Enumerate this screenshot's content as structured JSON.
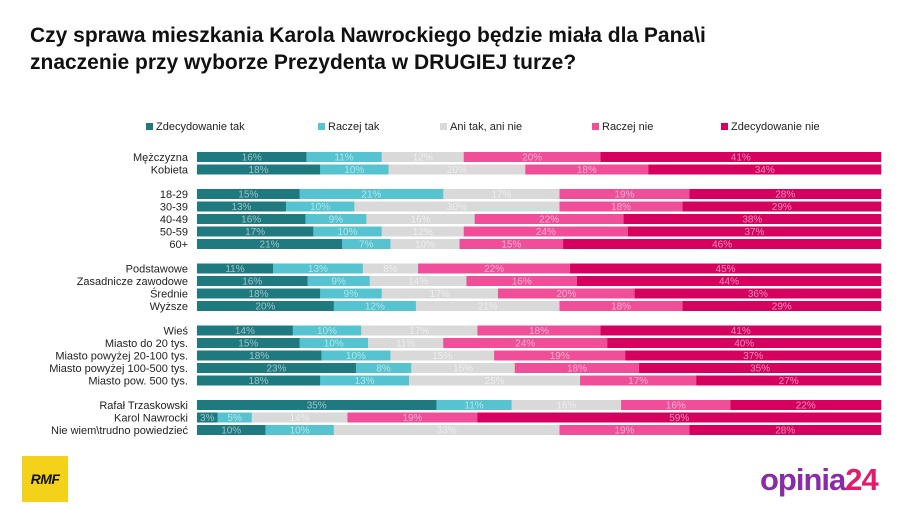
{
  "header": {
    "title_line1": "Czy sprawa mieszkania Karola Nawrockiego będzie miała dla Pana\\i",
    "title_line2": "znaczenie przy wyborze Prezydenta w DRUGIEJ turze?"
  },
  "logos": {
    "left": "RMF",
    "right_text": "opinia",
    "right_number": "24"
  },
  "chart_data": {
    "type": "bar",
    "orientation": "horizontal",
    "stacked": true,
    "normalized": true,
    "legend_position": "top",
    "grid": false,
    "series": [
      {
        "name": "Zdecydowanie tak",
        "color": "#1f7a80"
      },
      {
        "name": "Raczej tak",
        "color": "#56c4d0"
      },
      {
        "name": "Ani tak, ani nie",
        "color": "#d9d9d9"
      },
      {
        "name": "Raczej nie",
        "color": "#f04e98"
      },
      {
        "name": "Zdecydowanie nie",
        "color": "#d6005f"
      }
    ],
    "groups": [
      [
        {
          "category": "Mężczyzna",
          "values": [
            16,
            11,
            12,
            20,
            41
          ]
        },
        {
          "category": "Kobieta",
          "values": [
            18,
            10,
            20,
            18,
            34
          ]
        }
      ],
      [
        {
          "category": "18-29",
          "values": [
            15,
            21,
            17,
            19,
            28
          ]
        },
        {
          "category": "30-39",
          "values": [
            13,
            10,
            30,
            18,
            29
          ]
        },
        {
          "category": "40-49",
          "values": [
            16,
            9,
            16,
            22,
            38
          ]
        },
        {
          "category": "50-59",
          "values": [
            17,
            10,
            12,
            24,
            37
          ]
        },
        {
          "category": "60+",
          "values": [
            21,
            7,
            10,
            15,
            46
          ]
        }
      ],
      [
        {
          "category": "Podstawowe",
          "values": [
            11,
            13,
            8,
            22,
            45
          ]
        },
        {
          "category": "Zasadnicze zawodowe",
          "values": [
            16,
            9,
            14,
            16,
            44
          ]
        },
        {
          "category": "Średnie",
          "values": [
            18,
            9,
            17,
            20,
            36
          ]
        },
        {
          "category": "Wyższe",
          "values": [
            20,
            12,
            21,
            18,
            29
          ]
        }
      ],
      [
        {
          "category": "Wieś",
          "values": [
            14,
            10,
            17,
            18,
            41
          ]
        },
        {
          "category": "Miasto do 20 tys.",
          "values": [
            15,
            10,
            11,
            24,
            40
          ]
        },
        {
          "category": "Miasto powyżej 20-100 tys.",
          "values": [
            18,
            10,
            15,
            19,
            37
          ]
        },
        {
          "category": "Miasto powyżej 100-500 tys.",
          "values": [
            23,
            8,
            15,
            18,
            35
          ]
        },
        {
          "category": "Miasto pow. 500 tys.",
          "values": [
            18,
            13,
            25,
            17,
            27
          ]
        }
      ],
      [
        {
          "category": "Rafał Trzaskowski",
          "values": [
            35,
            11,
            16,
            16,
            22
          ]
        },
        {
          "category": "Karol Nawrocki",
          "values": [
            3,
            5,
            14,
            19,
            59
          ]
        },
        {
          "category": "Nie wiem\\trudno powiedzieć",
          "values": [
            10,
            10,
            33,
            19,
            28
          ]
        }
      ]
    ]
  }
}
